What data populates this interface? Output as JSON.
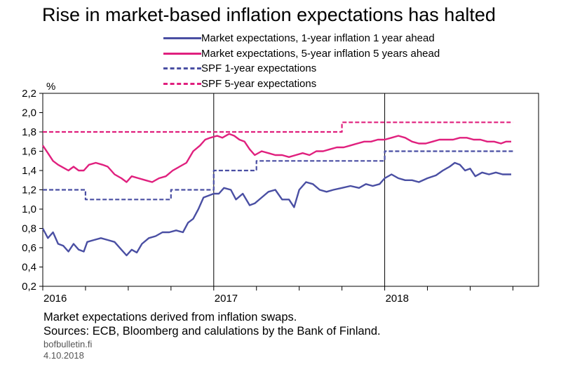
{
  "title": "Rise in market-based inflation expectations has halted",
  "footnotes": {
    "line1": "Market expectations derived from inflation swaps.",
    "line2": "Sources: ECB, Bloomberg and calulations by the Bank of Finland.",
    "site": "bofbulletin.fi",
    "date": "4.10.2018"
  },
  "chart_data": {
    "type": "line",
    "title": "Rise in market-based inflation expectations has halted",
    "xlabel": "",
    "ylabel": "%",
    "xlim": [
      2016.0,
      2018.9
    ],
    "ylim": [
      0.2,
      2.2
    ],
    "yticks": [
      "0,2",
      "0,4",
      "0,6",
      "0,8",
      "1,0",
      "1,2",
      "1,4",
      "1,6",
      "1,8",
      "2,0",
      "2,2"
    ],
    "xtick_labels": [
      {
        "label": "2016",
        "x": 2016.0
      },
      {
        "label": "2017",
        "x": 2017.0
      },
      {
        "label": "2018",
        "x": 2018.0
      }
    ],
    "grid": "vertical lines at year boundaries",
    "legend_position": "top",
    "series": [
      {
        "name": "Market expectations, 1-year inflation 1 year ahead",
        "color": "#4a4fa3",
        "style": "solid",
        "points": [
          [
            2016.0,
            0.8
          ],
          [
            2016.03,
            0.7
          ],
          [
            2016.06,
            0.76
          ],
          [
            2016.09,
            0.64
          ],
          [
            2016.12,
            0.62
          ],
          [
            2016.15,
            0.56
          ],
          [
            2016.18,
            0.64
          ],
          [
            2016.21,
            0.58
          ],
          [
            2016.24,
            0.56
          ],
          [
            2016.26,
            0.66
          ],
          [
            2016.3,
            0.68
          ],
          [
            2016.34,
            0.7
          ],
          [
            2016.38,
            0.68
          ],
          [
            2016.42,
            0.66
          ],
          [
            2016.46,
            0.58
          ],
          [
            2016.49,
            0.52
          ],
          [
            2016.52,
            0.58
          ],
          [
            2016.55,
            0.55
          ],
          [
            2016.58,
            0.64
          ],
          [
            2016.62,
            0.7
          ],
          [
            2016.66,
            0.72
          ],
          [
            2016.7,
            0.76
          ],
          [
            2016.74,
            0.76
          ],
          [
            2016.78,
            0.78
          ],
          [
            2016.82,
            0.76
          ],
          [
            2016.85,
            0.86
          ],
          [
            2016.88,
            0.9
          ],
          [
            2016.91,
            1.0
          ],
          [
            2016.94,
            1.12
          ],
          [
            2016.97,
            1.14
          ],
          [
            2017.0,
            1.16
          ],
          [
            2017.03,
            1.16
          ],
          [
            2017.06,
            1.22
          ],
          [
            2017.1,
            1.2
          ],
          [
            2017.13,
            1.1
          ],
          [
            2017.17,
            1.16
          ],
          [
            2017.21,
            1.04
          ],
          [
            2017.24,
            1.06
          ],
          [
            2017.28,
            1.12
          ],
          [
            2017.32,
            1.18
          ],
          [
            2017.36,
            1.2
          ],
          [
            2017.4,
            1.1
          ],
          [
            2017.44,
            1.1
          ],
          [
            2017.47,
            1.02
          ],
          [
            2017.5,
            1.2
          ],
          [
            2017.54,
            1.28
          ],
          [
            2017.58,
            1.26
          ],
          [
            2017.62,
            1.2
          ],
          [
            2017.66,
            1.18
          ],
          [
            2017.7,
            1.2
          ],
          [
            2017.75,
            1.22
          ],
          [
            2017.8,
            1.24
          ],
          [
            2017.85,
            1.22
          ],
          [
            2017.89,
            1.26
          ],
          [
            2017.93,
            1.24
          ],
          [
            2017.97,
            1.26
          ],
          [
            2018.0,
            1.32
          ],
          [
            2018.04,
            1.36
          ],
          [
            2018.08,
            1.32
          ],
          [
            2018.12,
            1.3
          ],
          [
            2018.16,
            1.3
          ],
          [
            2018.2,
            1.28
          ],
          [
            2018.25,
            1.32
          ],
          [
            2018.3,
            1.35
          ],
          [
            2018.34,
            1.4
          ],
          [
            2018.38,
            1.44
          ],
          [
            2018.41,
            1.48
          ],
          [
            2018.44,
            1.46
          ],
          [
            2018.47,
            1.4
          ],
          [
            2018.5,
            1.42
          ],
          [
            2018.53,
            1.34
          ],
          [
            2018.57,
            1.38
          ],
          [
            2018.61,
            1.36
          ],
          [
            2018.65,
            1.38
          ],
          [
            2018.69,
            1.36
          ],
          [
            2018.74,
            1.36
          ]
        ]
      },
      {
        "name": "Market expectations, 5-year inflation 5 years ahead",
        "color": "#e0207e",
        "style": "solid",
        "points": [
          [
            2016.0,
            1.66
          ],
          [
            2016.03,
            1.58
          ],
          [
            2016.06,
            1.5
          ],
          [
            2016.09,
            1.46
          ],
          [
            2016.12,
            1.43
          ],
          [
            2016.15,
            1.4
          ],
          [
            2016.18,
            1.44
          ],
          [
            2016.21,
            1.4
          ],
          [
            2016.24,
            1.4
          ],
          [
            2016.27,
            1.46
          ],
          [
            2016.31,
            1.48
          ],
          [
            2016.35,
            1.46
          ],
          [
            2016.38,
            1.44
          ],
          [
            2016.42,
            1.36
          ],
          [
            2016.46,
            1.32
          ],
          [
            2016.49,
            1.28
          ],
          [
            2016.52,
            1.34
          ],
          [
            2016.56,
            1.32
          ],
          [
            2016.6,
            1.3
          ],
          [
            2016.64,
            1.28
          ],
          [
            2016.68,
            1.32
          ],
          [
            2016.72,
            1.34
          ],
          [
            2016.76,
            1.4
          ],
          [
            2016.8,
            1.44
          ],
          [
            2016.84,
            1.48
          ],
          [
            2016.88,
            1.6
          ],
          [
            2016.92,
            1.66
          ],
          [
            2016.95,
            1.72
          ],
          [
            2016.98,
            1.74
          ],
          [
            2017.02,
            1.76
          ],
          [
            2017.05,
            1.74
          ],
          [
            2017.09,
            1.78
          ],
          [
            2017.12,
            1.76
          ],
          [
            2017.15,
            1.72
          ],
          [
            2017.18,
            1.7
          ],
          [
            2017.21,
            1.62
          ],
          [
            2017.24,
            1.56
          ],
          [
            2017.28,
            1.6
          ],
          [
            2017.32,
            1.58
          ],
          [
            2017.36,
            1.56
          ],
          [
            2017.4,
            1.56
          ],
          [
            2017.44,
            1.54
          ],
          [
            2017.48,
            1.56
          ],
          [
            2017.52,
            1.58
          ],
          [
            2017.56,
            1.56
          ],
          [
            2017.6,
            1.6
          ],
          [
            2017.64,
            1.6
          ],
          [
            2017.68,
            1.62
          ],
          [
            2017.72,
            1.64
          ],
          [
            2017.76,
            1.64
          ],
          [
            2017.8,
            1.66
          ],
          [
            2017.84,
            1.68
          ],
          [
            2017.88,
            1.7
          ],
          [
            2017.92,
            1.7
          ],
          [
            2017.96,
            1.72
          ],
          [
            2018.0,
            1.72
          ],
          [
            2018.04,
            1.74
          ],
          [
            2018.08,
            1.76
          ],
          [
            2018.12,
            1.74
          ],
          [
            2018.16,
            1.7
          ],
          [
            2018.2,
            1.68
          ],
          [
            2018.24,
            1.68
          ],
          [
            2018.28,
            1.7
          ],
          [
            2018.32,
            1.72
          ],
          [
            2018.36,
            1.72
          ],
          [
            2018.4,
            1.72
          ],
          [
            2018.44,
            1.74
          ],
          [
            2018.48,
            1.74
          ],
          [
            2018.52,
            1.72
          ],
          [
            2018.56,
            1.72
          ],
          [
            2018.6,
            1.7
          ],
          [
            2018.64,
            1.7
          ],
          [
            2018.68,
            1.68
          ],
          [
            2018.71,
            1.7
          ],
          [
            2018.74,
            1.7
          ]
        ]
      },
      {
        "name": "SPF 1-year expectations",
        "color": "#4a4fa3",
        "style": "dashed",
        "points": [
          [
            2016.0,
            1.2
          ],
          [
            2016.25,
            1.2
          ],
          [
            2016.25,
            1.1
          ],
          [
            2016.75,
            1.1
          ],
          [
            2016.75,
            1.2
          ],
          [
            2017.0,
            1.2
          ],
          [
            2017.0,
            1.4
          ],
          [
            2017.25,
            1.4
          ],
          [
            2017.25,
            1.5
          ],
          [
            2018.0,
            1.5
          ],
          [
            2018.0,
            1.6
          ],
          [
            2018.75,
            1.6
          ]
        ]
      },
      {
        "name": "SPF 5-year expectations",
        "color": "#e0207e",
        "style": "dashed",
        "points": [
          [
            2016.0,
            1.8
          ],
          [
            2017.75,
            1.8
          ],
          [
            2017.75,
            1.9
          ],
          [
            2018.75,
            1.9
          ]
        ]
      }
    ]
  }
}
